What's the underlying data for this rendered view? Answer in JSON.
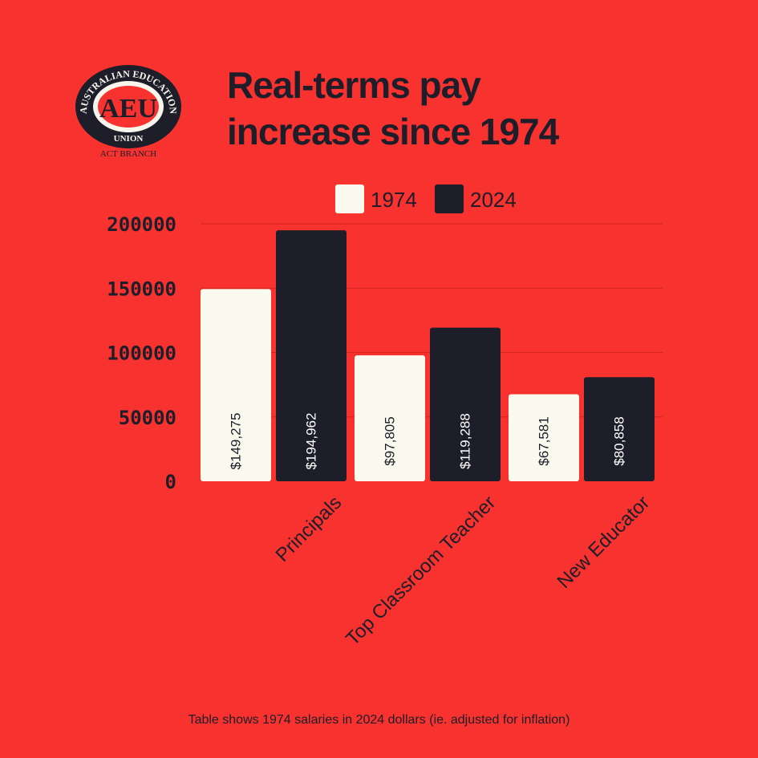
{
  "logo": {
    "org_line": "AUSTRALIAN EDUCATION",
    "acronym": "AEU",
    "union": "UNION",
    "branch": "ACT BRANCH"
  },
  "colors": {
    "background": "#f7322f",
    "dark": "#1d1e29",
    "light": "#f9f9ee",
    "gridline": "#d42420"
  },
  "chart_data": {
    "type": "bar",
    "title_lines": [
      "Real-terms pay",
      "increase since 1974"
    ],
    "categories": [
      "Principals",
      "Top Classroom Teacher",
      "New Educator"
    ],
    "series": [
      {
        "name": "1974",
        "values": [
          149275,
          97805,
          67581
        ],
        "labels": [
          "$149,275",
          "$97,805",
          "$67,581"
        ],
        "color": "#f9f9ee",
        "label_color": "#1d1e29"
      },
      {
        "name": "2024",
        "values": [
          194962,
          119288,
          80858
        ],
        "labels": [
          "$194,962",
          "$119,288",
          "$80,858"
        ],
        "color": "#1d1e29",
        "label_color": "#ffffff"
      }
    ],
    "yticks": [
      "0",
      "50000",
      "100000",
      "150000",
      "200000"
    ],
    "ylim": [
      0,
      200000
    ],
    "xlabel": "",
    "ylabel": "",
    "grid": true,
    "legend_position": "top"
  },
  "footnote": "Table shows 1974 salaries in 2024 dollars (ie. adjusted for inflation)"
}
